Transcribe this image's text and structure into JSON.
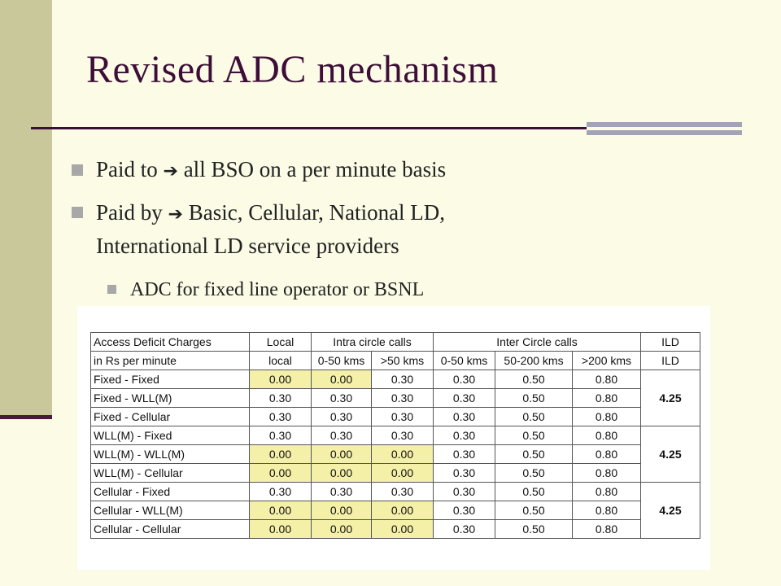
{
  "title": "Revised ADC mechanism",
  "bullets": {
    "b1_prefix": "Paid to",
    "b1_text": "all BSO on a per minute basis",
    "b2_prefix": "Paid by",
    "b2_line1": "Basic, Cellular, National LD,",
    "b2_line2": "International LD service providers",
    "arrow": "➔",
    "sub1": "ADC for fixed line operator or BSNL"
  },
  "table": {
    "header1": {
      "label": "Access Deficit Charges",
      "local": "Local",
      "intra": "Intra circle calls",
      "inter": "Inter Circle calls",
      "ild": "ILD"
    },
    "header2": [
      "in Rs per minute",
      "local",
      "0-50 kms",
      ">50 kms",
      "0-50 kms",
      "50-200 kms",
      ">200 kms",
      "ILD"
    ],
    "rows": [
      {
        "label": "Fixed - Fixed",
        "values": [
          "0.00",
          "0.00",
          "0.30",
          "0.30",
          "0.50",
          "0.80"
        ]
      },
      {
        "label": "Fixed - WLL(M)",
        "values": [
          "0.30",
          "0.30",
          "0.30",
          "0.30",
          "0.50",
          "0.80"
        ]
      },
      {
        "label": "Fixed - Cellular",
        "values": [
          "0.30",
          "0.30",
          "0.30",
          "0.30",
          "0.50",
          "0.80"
        ]
      },
      {
        "label": "WLL(M) - Fixed",
        "values": [
          "0.30",
          "0.30",
          "0.30",
          "0.30",
          "0.50",
          "0.80"
        ]
      },
      {
        "label": "WLL(M) - WLL(M)",
        "values": [
          "0.00",
          "0.00",
          "0.00",
          "0.30",
          "0.50",
          "0.80"
        ]
      },
      {
        "label": "WLL(M) - Cellular",
        "values": [
          "0.00",
          "0.00",
          "0.00",
          "0.30",
          "0.50",
          "0.80"
        ]
      },
      {
        "label": "Cellular - Fixed",
        "values": [
          "0.30",
          "0.30",
          "0.30",
          "0.30",
          "0.50",
          "0.80"
        ]
      },
      {
        "label": "Cellular - WLL(M)",
        "values": [
          "0.00",
          "0.00",
          "0.00",
          "0.30",
          "0.50",
          "0.80"
        ]
      },
      {
        "label": "Cellular - Cellular",
        "values": [
          "0.00",
          "0.00",
          "0.00",
          "0.30",
          "0.50",
          "0.80"
        ]
      }
    ],
    "ild_groups": [
      "4.25",
      "4.25",
      "4.25"
    ],
    "highlight_color": "#f5f0a8"
  }
}
